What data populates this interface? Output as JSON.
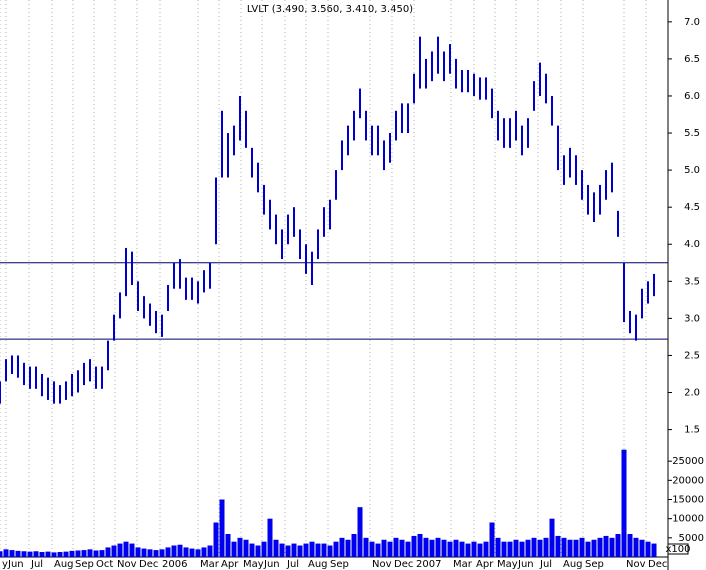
{
  "chart_data": {
    "type": "stock",
    "title": "LVLT (3.490, 3.560, 3.410, 3.450)",
    "x": [
      0,
      6,
      12,
      18,
      24,
      30,
      36,
      42,
      48,
      54,
      60,
      66,
      72,
      78,
      84,
      90,
      96,
      102,
      108,
      114,
      120,
      126,
      132,
      138,
      144,
      150,
      156,
      162,
      168,
      174,
      180,
      186,
      192,
      198,
      204,
      210,
      216,
      222,
      228,
      234,
      240,
      246,
      252,
      258,
      264,
      270,
      276,
      282,
      288,
      294,
      300,
      306,
      312,
      318,
      324,
      330,
      336,
      342,
      348,
      354,
      360,
      366,
      372,
      378,
      384,
      390,
      396,
      402,
      408,
      414,
      420,
      426,
      432,
      438,
      444,
      450,
      456,
      462,
      468,
      474,
      480,
      486,
      492,
      498,
      504,
      510,
      516,
      522,
      528,
      534,
      540,
      546,
      552,
      558,
      564,
      570,
      576,
      582,
      588,
      594,
      600,
      606,
      612,
      618,
      624,
      630,
      636,
      642,
      648,
      654
    ],
    "high": [
      2.15,
      2.45,
      2.5,
      2.5,
      2.4,
      2.35,
      2.35,
      2.25,
      2.2,
      2.15,
      2.1,
      2.15,
      2.25,
      2.3,
      2.4,
      2.45,
      2.35,
      2.35,
      2.7,
      3.05,
      3.35,
      3.95,
      3.9,
      3.5,
      3.3,
      3.2,
      3.1,
      3.05,
      3.45,
      3.75,
      3.8,
      3.55,
      3.55,
      3.5,
      3.65,
      3.75,
      4.9,
      5.8,
      5.5,
      5.6,
      6.0,
      5.8,
      5.3,
      5.1,
      4.8,
      4.6,
      4.4,
      4.2,
      4.4,
      4.5,
      4.2,
      4.0,
      3.9,
      4.2,
      4.5,
      4.6,
      5.0,
      5.4,
      5.6,
      5.8,
      6.1,
      5.8,
      5.6,
      5.6,
      5.4,
      5.5,
      5.8,
      5.9,
      5.9,
      6.3,
      6.8,
      6.5,
      6.6,
      6.8,
      6.6,
      6.7,
      6.5,
      6.35,
      6.35,
      6.3,
      6.25,
      6.25,
      6.1,
      5.8,
      5.7,
      5.7,
      5.8,
      5.6,
      5.7,
      6.2,
      6.45,
      6.3,
      6.0,
      5.6,
      5.2,
      5.3,
      5.2,
      5.0,
      4.8,
      4.7,
      4.8,
      5.0,
      5.1,
      4.45,
      3.75,
      3.1,
      3.05,
      3.4,
      3.5,
      3.6
    ],
    "low": [
      1.85,
      2.15,
      2.25,
      2.2,
      2.1,
      2.05,
      2.05,
      1.95,
      1.9,
      1.85,
      1.85,
      1.9,
      1.95,
      2.0,
      2.1,
      2.15,
      2.05,
      2.05,
      2.3,
      2.7,
      3.0,
      3.3,
      3.45,
      3.1,
      3.0,
      2.9,
      2.8,
      2.75,
      3.1,
      3.4,
      3.4,
      3.25,
      3.25,
      3.2,
      3.35,
      3.4,
      4.0,
      4.9,
      4.9,
      5.2,
      5.4,
      5.3,
      4.9,
      4.7,
      4.4,
      4.2,
      4.0,
      3.8,
      4.0,
      4.1,
      3.8,
      3.6,
      3.45,
      3.8,
      4.1,
      4.2,
      4.6,
      5.0,
      5.2,
      5.4,
      5.7,
      5.4,
      5.2,
      5.2,
      5.0,
      5.1,
      5.4,
      5.5,
      5.5,
      5.9,
      6.1,
      6.1,
      6.2,
      6.3,
      6.2,
      6.3,
      6.1,
      6.05,
      6.05,
      6.0,
      5.95,
      5.95,
      5.7,
      5.4,
      5.3,
      5.3,
      5.4,
      5.2,
      5.3,
      5.8,
      6.0,
      5.9,
      5.6,
      5.0,
      4.8,
      4.9,
      4.8,
      4.6,
      4.4,
      4.3,
      4.4,
      4.6,
      4.7,
      4.1,
      2.95,
      2.8,
      2.7,
      3.0,
      3.2,
      3.3
    ],
    "color": "#0000cc",
    "xlim": [
      0,
      668
    ],
    "ylim": [
      1.4,
      7.2
    ],
    "yticks": [
      1.5,
      {
        "value": 2,
        "label": "2.0"
      },
      2.5,
      {
        "value": 3,
        "label": "3.0"
      },
      3.5,
      {
        "value": 4,
        "label": "4.0"
      },
      4.5,
      {
        "value": 5,
        "label": "5.0"
      },
      5.5,
      {
        "value": 6,
        "label": "6.0"
      },
      6.5,
      {
        "value": 7,
        "label": "7.0"
      }
    ],
    "hlines": [
      3.75,
      2.72
    ],
    "xticks": [
      {
        "value": 0,
        "label": "y"
      },
      {
        "value": 6,
        "label": "Jun"
      },
      {
        "value": 29,
        "label": "Jul"
      },
      {
        "value": 52,
        "label": "Aug"
      },
      {
        "value": 73,
        "label": "Sep"
      },
      {
        "value": 94,
        "label": "Oct"
      },
      {
        "value": 115,
        "label": "Nov"
      },
      {
        "value": 137,
        "label": "Dec"
      },
      {
        "value": 160,
        "label": "2006"
      },
      {
        "value": 198,
        "label": "Mar"
      },
      {
        "value": 219,
        "label": "Apr"
      },
      {
        "value": 241,
        "label": "May"
      },
      {
        "value": 262,
        "label": "Jun"
      },
      {
        "value": 285,
        "label": "Jul"
      },
      {
        "value": 306,
        "label": "Aug"
      },
      {
        "value": 328,
        "label": "Sep"
      },
      {
        "value": 370,
        "label": "Nov"
      },
      {
        "value": 392,
        "label": "Dec"
      },
      {
        "value": 414,
        "label": "2007"
      },
      {
        "value": 451,
        "label": "Mar"
      },
      {
        "value": 474,
        "label": "Apr"
      },
      {
        "value": 495,
        "label": "May"
      },
      {
        "value": 516,
        "label": "Jun"
      },
      {
        "value": 538,
        "label": "Jul"
      },
      {
        "value": 561,
        "label": "Aug"
      },
      {
        "value": 583,
        "label": "Sep"
      },
      {
        "value": 624,
        "label": "Nov"
      },
      {
        "value": 646,
        "label": "Dec"
      }
    ],
    "volume": [
      1500,
      2000,
      1800,
      1600,
      1500,
      1400,
      1500,
      1300,
      1400,
      1200,
      1300,
      1400,
      1600,
      1700,
      1800,
      2000,
      1700,
      1800,
      2500,
      3000,
      3500,
      4000,
      3500,
      2500,
      2200,
      2000,
      1800,
      2000,
      2500,
      3000,
      3200,
      2500,
      2200,
      2000,
      2500,
      3000,
      9000,
      15000,
      6000,
      4000,
      5000,
      4500,
      3500,
      3000,
      4000,
      10000,
      4500,
      3500,
      3000,
      3500,
      3000,
      3500,
      4000,
      3500,
      3500,
      3000,
      4000,
      5000,
      4500,
      6000,
      13000,
      5000,
      4000,
      3500,
      4500,
      4000,
      5000,
      4500,
      4000,
      5500,
      6000,
      5000,
      4500,
      5000,
      4500,
      4000,
      4500,
      4000,
      3500,
      4000,
      3500,
      4000,
      9000,
      5000,
      4000,
      4000,
      4500,
      4000,
      4500,
      5000,
      4500,
      5000,
      10000,
      5500,
      5000,
      4500,
      4500,
      5000,
      4000,
      4500,
      5000,
      5500,
      5000,
      6000,
      28000,
      6000,
      5000,
      4500,
      4000,
      3500
    ],
    "volume_color": "#0000ee",
    "y2lim": [
      0,
      30000
    ],
    "y2ticks": [
      5000,
      10000,
      15000,
      20000,
      25000
    ],
    "y2label": "x100"
  }
}
